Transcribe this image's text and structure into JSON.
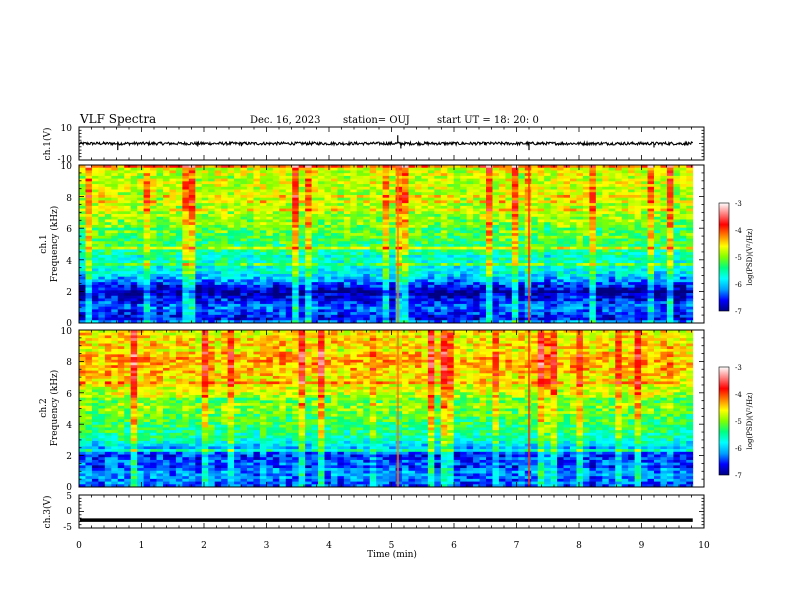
{
  "header": {
    "title": "VLF Spectra",
    "date": "Dec. 16, 2023",
    "station": "station= OUJ",
    "start": "start  UT =   18: 20: 0"
  },
  "chart_data": [
    {
      "type": "line",
      "panel": "ch1-waveform",
      "ylabel": "ch.1(V)",
      "xlim": [
        0,
        10
      ],
      "ylim": [
        -10,
        10
      ],
      "yticks": [
        "10",
        "-10"
      ],
      "color": "#000000",
      "baseline": 0,
      "spikes": [
        {
          "x": 0.62,
          "y": -4
        },
        {
          "x": 1.9,
          "y": -1.8
        },
        {
          "x": 2.6,
          "y": -1.6
        },
        {
          "x": 5.1,
          "y": 5
        },
        {
          "x": 5.15,
          "y": -3
        },
        {
          "x": 7.2,
          "y": -4
        },
        {
          "x": 9.2,
          "y": -2.4
        }
      ]
    },
    {
      "type": "heatmap",
      "panel": "ch1-spectrogram",
      "ylabel": "ch.1\nFrequency (kHz)",
      "xlim": [
        0,
        10
      ],
      "ylim": [
        0,
        10
      ],
      "yticks": [
        "0",
        "2",
        "4",
        "6",
        "8",
        "10"
      ],
      "colorbar": {
        "range": [
          -7,
          -3
        ],
        "ticks": [
          "-3",
          "-4",
          "-5",
          "-6",
          "-7"
        ],
        "label": "log(PSD)(V²/Hz)",
        "colormap": [
          "#000080",
          "#0000ff",
          "#00a0ff",
          "#00ffff",
          "#00ff80",
          "#80ff00",
          "#ffff00",
          "#ff8000",
          "#ff0000",
          "#ff8080",
          "#ffffff"
        ]
      },
      "level_profile": [
        [
          0,
          -6.8
        ],
        [
          1,
          -6.3
        ],
        [
          2,
          -6.9
        ],
        [
          3,
          -5.9
        ],
        [
          4,
          -5.6
        ],
        [
          5,
          -5.3
        ],
        [
          6,
          -5.1
        ],
        [
          7,
          -4.9
        ],
        [
          8,
          -4.8
        ],
        [
          9,
          -4.75
        ],
        [
          10,
          -4.7
        ]
      ]
    },
    {
      "type": "heatmap",
      "panel": "ch2-spectrogram",
      "ylabel": "ch.2\nFrequency (kHz)",
      "xlim": [
        0,
        10
      ],
      "ylim": [
        0,
        10
      ],
      "yticks": [
        "0",
        "2",
        "4",
        "6",
        "8",
        "10"
      ],
      "colorbar": {
        "range": [
          -7,
          -3
        ],
        "ticks": [
          "-3",
          "-4",
          "-5",
          "-6",
          "-7"
        ],
        "label": "log(PSD)(V²/Hz)",
        "colormap": [
          "#000080",
          "#0000ff",
          "#00a0ff",
          "#00ffff",
          "#00ff80",
          "#80ff00",
          "#ffff00",
          "#ff8000",
          "#ff0000",
          "#ff8080",
          "#ffffff"
        ]
      },
      "level_profile": [
        [
          0,
          -6.4
        ],
        [
          1,
          -6.2
        ],
        [
          2,
          -6.5
        ],
        [
          3,
          -5.6
        ],
        [
          4,
          -5.3
        ],
        [
          5,
          -5.0
        ],
        [
          6,
          -4.8
        ],
        [
          7,
          -4.5
        ],
        [
          8,
          -4.3
        ],
        [
          9,
          -4.5
        ],
        [
          10,
          -4.6
        ]
      ]
    },
    {
      "type": "line",
      "panel": "ch3-waveform",
      "ylabel": "ch.3(V)",
      "xlim": [
        0,
        10
      ],
      "ylim": [
        -5,
        5
      ],
      "yticks": [
        "5",
        "0",
        "-5"
      ],
      "color": "#000000",
      "constant_value": -2.6,
      "xlabel": "Time (min)",
      "xticks": [
        "0",
        "1",
        "2",
        "3",
        "4",
        "5",
        "6",
        "7",
        "8",
        "9",
        "10"
      ]
    }
  ]
}
